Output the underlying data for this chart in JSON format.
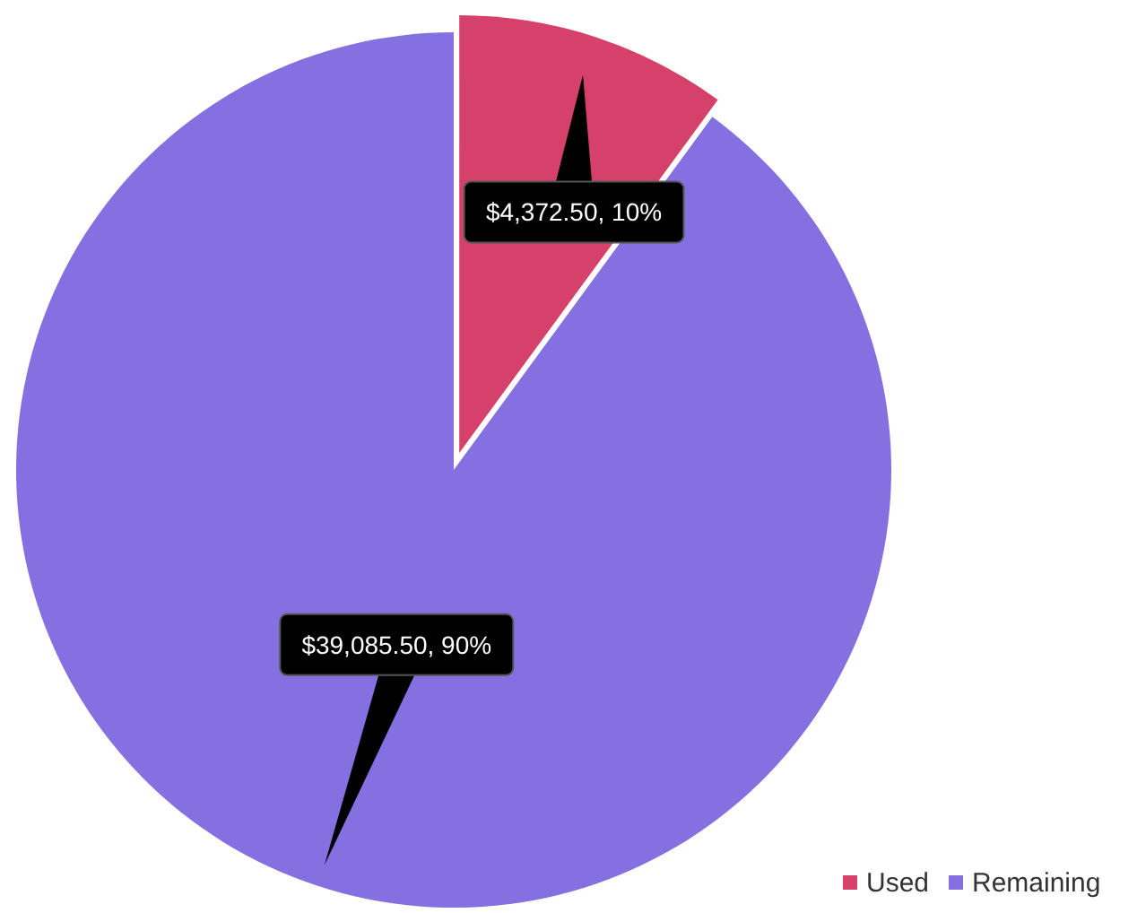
{
  "chart_data": {
    "type": "pie",
    "categories": [
      "Used",
      "Remaining"
    ],
    "values": [
      4372.5,
      39085.5
    ],
    "colors": [
      "#d6416b",
      "#8470e0"
    ],
    "value_labels": [
      "$4,372.50, 10%",
      "$39,085.50, 90%"
    ],
    "legend": "bottom right"
  }
}
